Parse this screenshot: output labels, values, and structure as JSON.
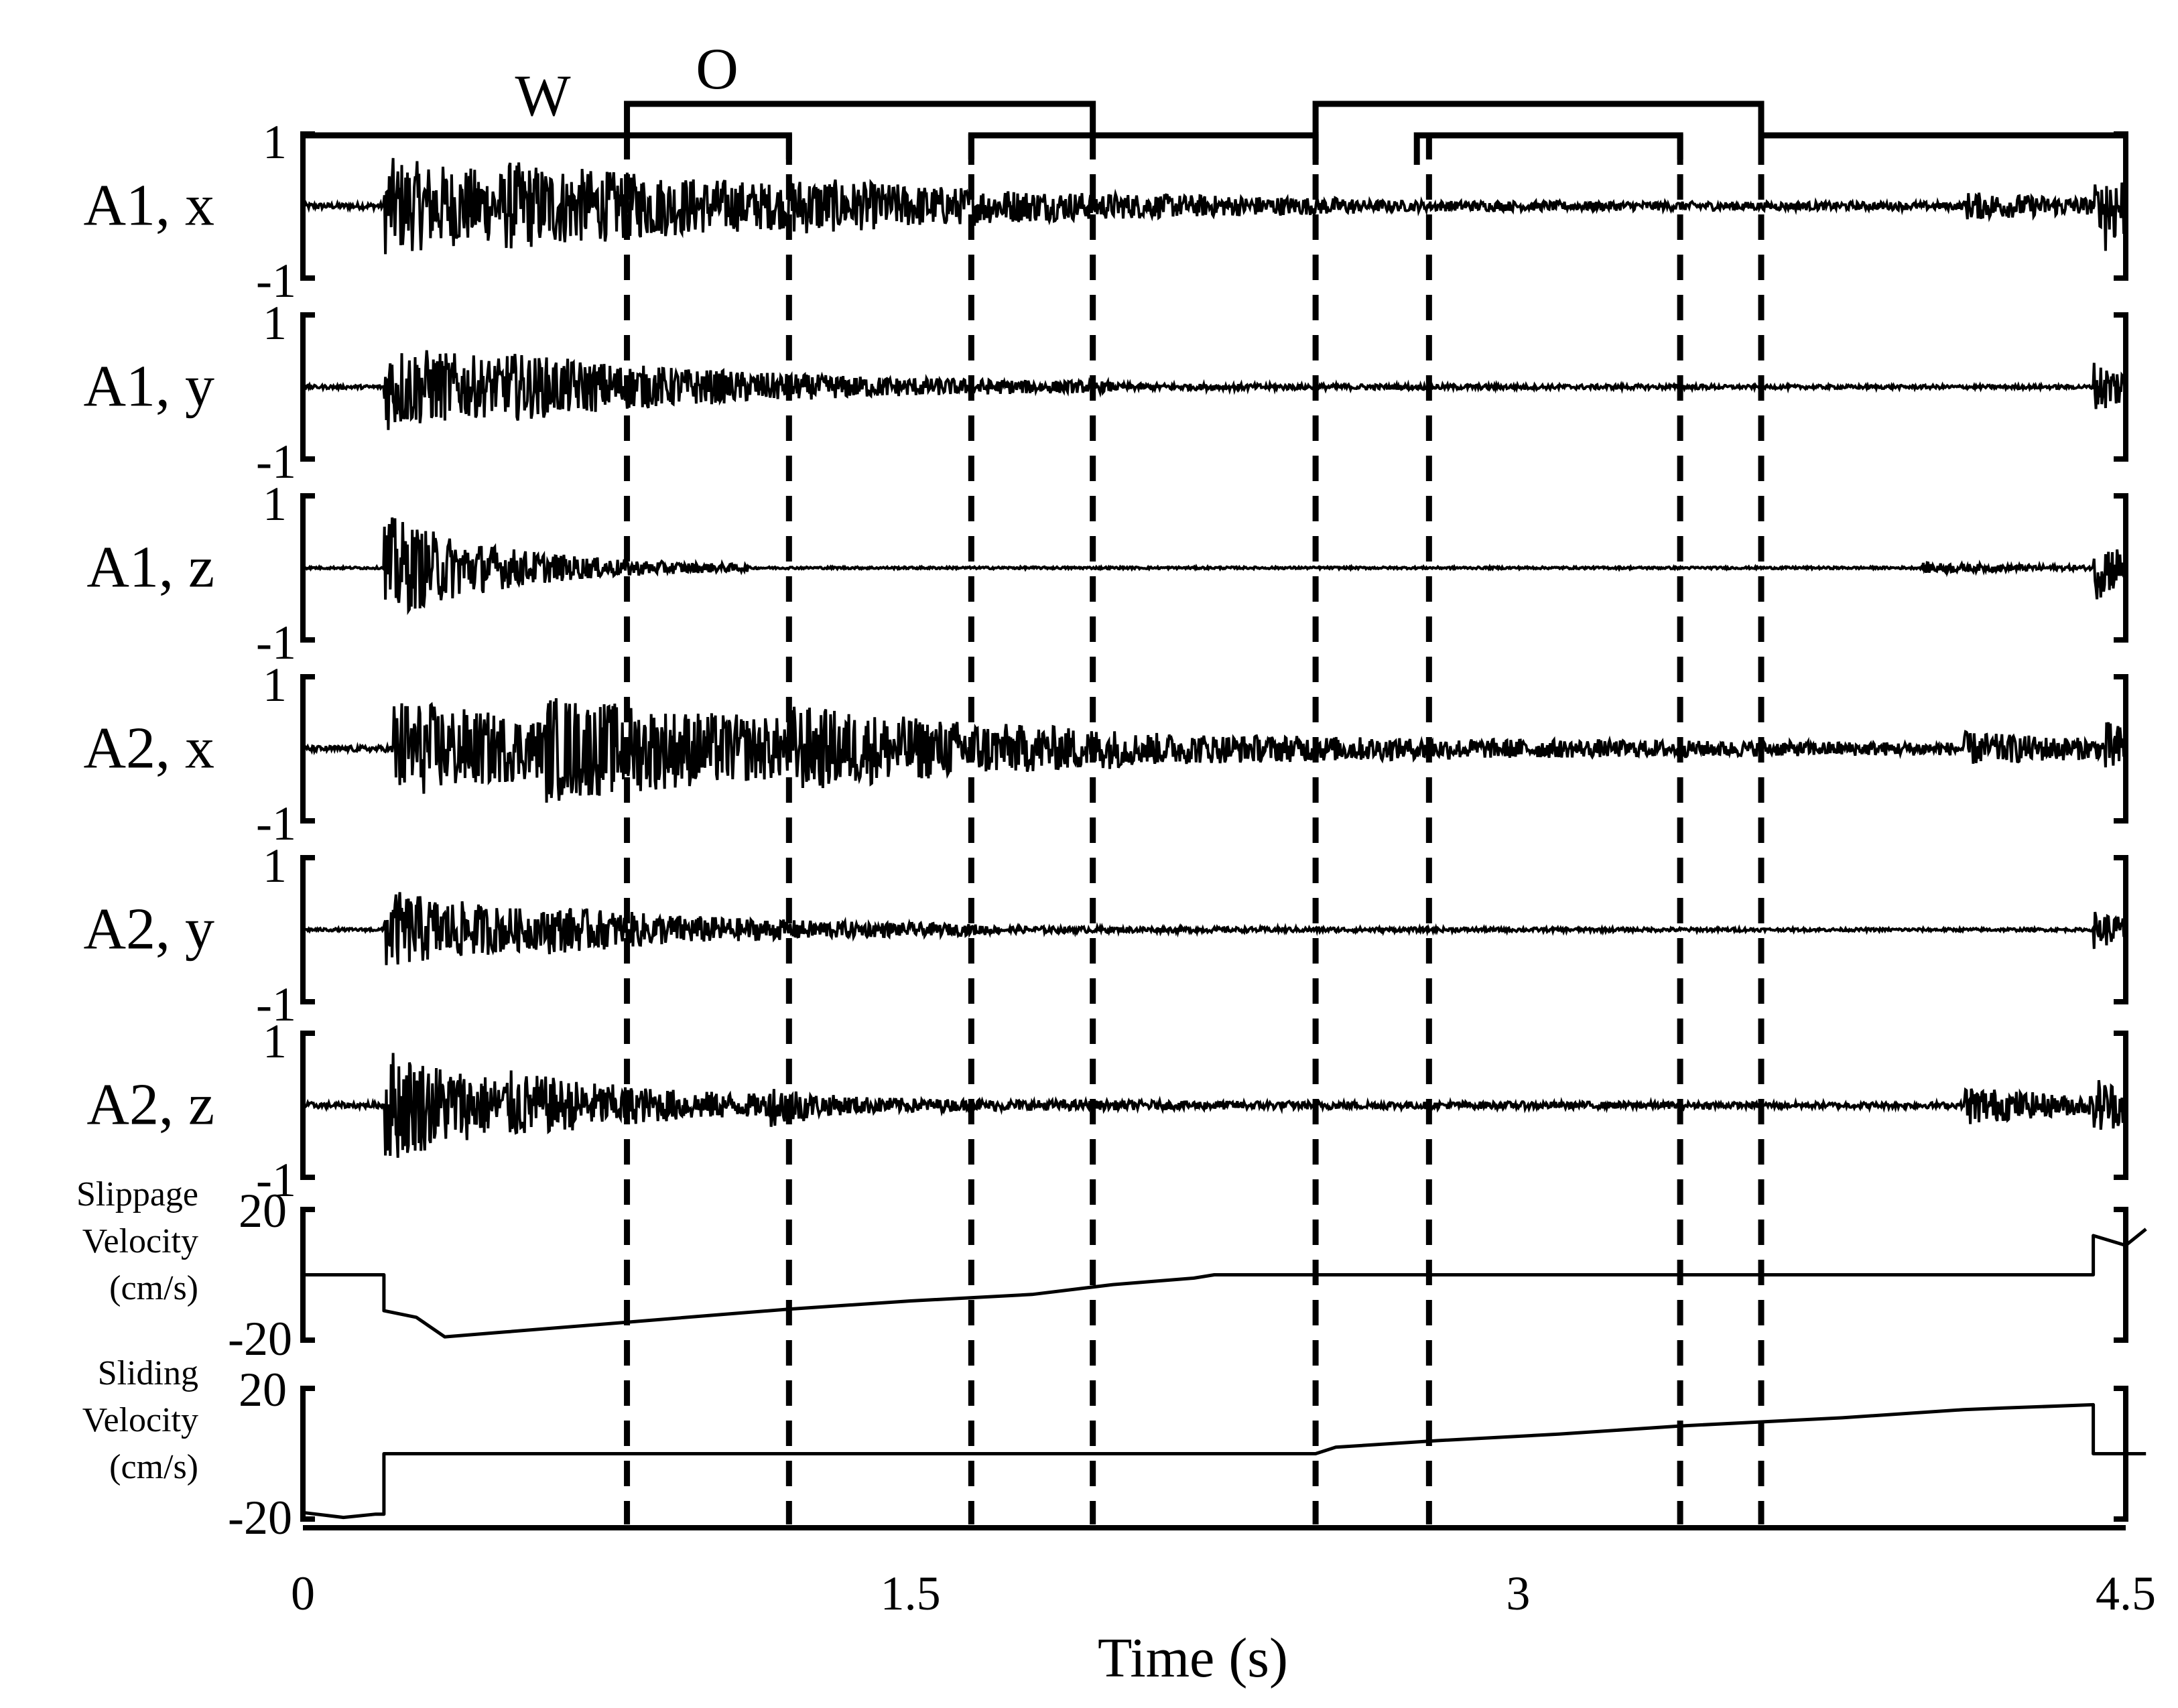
{
  "chart_data": {
    "type": "line",
    "xlabel": "Time (s)",
    "xlim": [
      0,
      4.5
    ],
    "x_ticks": [
      "0",
      "1.5",
      "3",
      "4.5"
    ],
    "x_tick_values": [
      0,
      1.5,
      3,
      4.5
    ],
    "phase_labels": [
      "W",
      "O"
    ],
    "timing_bars": {
      "W": [
        [
          0,
          1.2
        ],
        [
          1.65,
          2.5
        ],
        [
          2.75,
          3.4
        ],
        [
          3.6,
          4.5
        ]
      ],
      "O": [
        [
          0.8,
          1.95
        ],
        [
          2.5,
          3.6
        ]
      ]
    },
    "dashed_lines_x": [
      0.8,
      1.2,
      1.65,
      1.95,
      2.5,
      2.78,
      3.4,
      3.6
    ],
    "series": [
      {
        "name": "A1, x",
        "ylim": [
          -1,
          1
        ],
        "y_ticks": [
          "1",
          "-1"
        ],
        "bursts": [
          [
            0.2,
            0.65,
            0.8
          ],
          [
            0.5,
            0.15,
            1.5
          ],
          [
            1.2,
            0.1,
            0.5
          ],
          [
            4.1,
            0.15,
            0.4
          ],
          [
            4.42,
            0.2,
            0.3
          ],
          [
            4.45,
            0.35,
            0.08
          ]
        ],
        "noise": 0.04
      },
      {
        "name": "A1, y",
        "ylim": [
          -1,
          1
        ],
        "y_ticks": [
          "1",
          "-1"
        ],
        "bursts": [
          [
            0.2,
            0.6,
            0.6
          ],
          [
            0.5,
            0.1,
            1.0
          ],
          [
            4.42,
            0.35,
            0.2
          ]
        ],
        "noise": 0.025
      },
      {
        "name": "A1, z",
        "ylim": [
          -1,
          1
        ],
        "y_ticks": [
          "1",
          "-1"
        ],
        "bursts": [
          [
            0.2,
            0.75,
            0.3
          ],
          [
            4.0,
            0.06,
            0.3
          ],
          [
            4.42,
            0.45,
            0.12
          ]
        ],
        "noise": 0.015
      },
      {
        "name": "A2, x",
        "ylim": [
          -1,
          1
        ],
        "y_ticks": [
          "1",
          "-1"
        ],
        "bursts": [
          [
            0.22,
            0.7,
            0.6
          ],
          [
            0.6,
            0.35,
            1.8
          ],
          [
            1.2,
            0.2,
            0.5
          ],
          [
            4.1,
            0.15,
            0.4
          ],
          [
            4.45,
            0.25,
            0.15
          ]
        ],
        "noise": 0.04
      },
      {
        "name": "A2, y",
        "ylim": [
          -1,
          1
        ],
        "y_ticks": [
          "1",
          "-1"
        ],
        "bursts": [
          [
            0.2,
            0.55,
            0.5
          ],
          [
            0.6,
            0.08,
            1.0
          ],
          [
            4.42,
            0.25,
            0.2
          ]
        ],
        "noise": 0.02
      },
      {
        "name": "A2, z",
        "ylim": [
          -1,
          1
        ],
        "y_ticks": [
          "1",
          "-1"
        ],
        "bursts": [
          [
            0.2,
            0.8,
            0.35
          ],
          [
            0.5,
            0.12,
            1.0
          ],
          [
            1.15,
            0.15,
            0.15
          ],
          [
            4.1,
            0.25,
            0.3
          ],
          [
            4.42,
            0.3,
            0.15
          ]
        ],
        "noise": 0.04
      }
    ],
    "velocity": [
      {
        "name": "Slippage Velocity (cm/s)",
        "label_lines": [
          "Slippage",
          "Velocity",
          "(cm/s)"
        ],
        "ylim": [
          -20,
          20
        ],
        "y_ticks": [
          "20",
          "-20"
        ],
        "x": [
          0,
          0.2,
          0.2,
          0.28,
          0.35,
          0.5,
          0.8,
          1.0,
          1.2,
          1.5,
          1.8,
          2.0,
          2.1,
          2.2,
          2.25,
          4.42,
          4.42,
          4.5,
          4.55
        ],
        "y": [
          0,
          0,
          -11,
          -13,
          -19,
          -17.5,
          -14.5,
          -12.5,
          -10.5,
          -8,
          -6,
          -3,
          -2,
          -1,
          0,
          0,
          12,
          9,
          14
        ]
      },
      {
        "name": "Sliding Velocity (cm/s)",
        "label_lines": [
          "Sliding",
          "Velocity",
          "(cm/s)"
        ],
        "ylim": [
          -20,
          20
        ],
        "y_ticks": [
          "20",
          "-20"
        ],
        "x": [
          0,
          0.1,
          0.18,
          0.2,
          0.2,
          2.5,
          2.55,
          2.8,
          3.1,
          3.4,
          3.8,
          4.1,
          4.2,
          4.42,
          4.42,
          4.55
        ],
        "y": [
          -18,
          -19.5,
          -18.5,
          -18.5,
          0,
          0,
          2,
          4,
          6,
          8.5,
          11,
          13.5,
          14,
          15,
          0,
          0
        ]
      }
    ]
  }
}
